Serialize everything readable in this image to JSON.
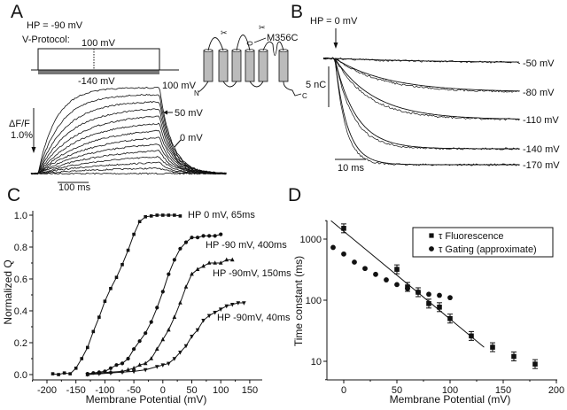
{
  "panels": {
    "A": {
      "label": "A",
      "hp": "HP = -90 mV",
      "protocol_label": "V-Protocol:",
      "step_high": "100 mV",
      "step_low": "-140 mV",
      "trace_labels": [
        "100 mV",
        "50 mV",
        "0 mV"
      ],
      "scale_y": [
        "ΔF/F",
        "1.0%"
      ],
      "scale_x": "100 ms",
      "topology": {
        "mutation": "M356C",
        "n_term": "N",
        "c_term": "C"
      }
    },
    "B": {
      "label": "B",
      "hp": "HP = 0 mV",
      "scale_y": "5 nC",
      "scale_x": "10 ms",
      "trace_labels": [
        "-50 mV",
        "-80 mV",
        "-110 mV",
        "-140 mV",
        "-170 mV"
      ]
    },
    "C": {
      "label": "C"
    },
    "D": {
      "label": "D"
    }
  },
  "chart_data": [
    {
      "panel": "C",
      "type": "scatter",
      "xlabel": "Membrane Potential (mV)",
      "ylabel": "Normalized Q",
      "xlim": [
        -225,
        160
      ],
      "ylim": [
        0,
        1.0
      ],
      "xticks": [
        -200,
        -150,
        -100,
        -50,
        0,
        50,
        100,
        150
      ],
      "yticks": [
        0.0,
        0.2,
        0.4,
        0.6,
        0.8,
        1.0
      ],
      "ytick_labels": [
        "0.0",
        "0.2",
        "0.4",
        "0.6",
        "0.8",
        "1.0"
      ],
      "grid": false,
      "series": [
        {
          "name": "HP 0 mV, 65ms",
          "marker": "square",
          "x": [
            -190,
            -180,
            -170,
            -160,
            -150,
            -140,
            -130,
            -120,
            -110,
            -100,
            -90,
            -80,
            -70,
            -60,
            -50,
            -40,
            -30,
            -20,
            -10,
            0,
            10,
            20,
            30
          ],
          "y": [
            0.005,
            0.0,
            0.01,
            0.005,
            0.04,
            0.1,
            0.17,
            0.27,
            0.36,
            0.46,
            0.54,
            0.61,
            0.69,
            0.78,
            0.88,
            0.96,
            0.99,
            0.995,
            1.0,
            1.0,
            1.0,
            1.0,
            0.995
          ]
        },
        {
          "name": "HP -90 mV, 400ms",
          "marker": "circle",
          "x": [
            -130,
            -120,
            -110,
            -100,
            -90,
            -80,
            -70,
            -60,
            -50,
            -40,
            -30,
            -20,
            -10,
            0,
            10,
            20,
            30,
            40,
            50,
            60,
            70,
            80,
            90,
            100
          ],
          "y": [
            0.005,
            0.01,
            0.015,
            0.02,
            0.04,
            0.06,
            0.07,
            0.1,
            0.16,
            0.21,
            0.26,
            0.33,
            0.42,
            0.52,
            0.63,
            0.72,
            0.79,
            0.83,
            0.86,
            0.86,
            0.87,
            0.87,
            0.87,
            0.88
          ]
        },
        {
          "name": "HP -90mV, 150ms",
          "marker": "triangle-up",
          "x": [
            -130,
            -110,
            -90,
            -70,
            -60,
            -50,
            -40,
            -30,
            -20,
            -10,
            0,
            10,
            20,
            30,
            40,
            50,
            60,
            70,
            80,
            90,
            100,
            110,
            120
          ],
          "y": [
            0.0,
            0.01,
            0.015,
            0.02,
            0.03,
            0.04,
            0.06,
            0.07,
            0.1,
            0.16,
            0.22,
            0.28,
            0.36,
            0.45,
            0.55,
            0.63,
            0.66,
            0.68,
            0.7,
            0.7,
            0.7,
            0.72,
            0.72
          ]
        },
        {
          "name": "HP -90mV, 40ms",
          "marker": "triangle-down",
          "x": [
            -130,
            -110,
            -90,
            -70,
            -50,
            -30,
            -10,
            0,
            10,
            20,
            30,
            40,
            50,
            60,
            70,
            80,
            90,
            100,
            110,
            120,
            130,
            140
          ],
          "y": [
            0.0,
            0.005,
            0.01,
            0.015,
            0.02,
            0.03,
            0.05,
            0.06,
            0.07,
            0.1,
            0.14,
            0.18,
            0.24,
            0.28,
            0.34,
            0.37,
            0.39,
            0.41,
            0.43,
            0.44,
            0.45,
            0.45
          ]
        }
      ]
    },
    {
      "panel": "D",
      "type": "scatter",
      "xlabel": "Membrane Potential (mV)",
      "ylabel": "Time constant (ms)",
      "xlim": [
        -15,
        200
      ],
      "ylim": [
        5,
        2000
      ],
      "yscale": "log",
      "xticks": [
        0,
        50,
        100,
        150,
        200
      ],
      "yticks": [
        10,
        100,
        1000
      ],
      "grid": false,
      "legend": "top-right",
      "series": [
        {
          "name": "τ  Fluorescence",
          "marker": "square",
          "error_bars": true,
          "x": [
            0,
            50,
            60,
            70,
            80,
            90,
            100,
            120,
            140,
            160,
            180
          ],
          "y": [
            1500,
            320,
            165,
            135,
            88,
            77,
            50,
            26,
            17,
            12,
            9
          ]
        },
        {
          "name": "τ  Gating (approximate)",
          "marker": "circle",
          "x": [
            -10,
            0,
            10,
            20,
            30,
            40,
            50,
            60,
            70,
            80,
            90,
            100
          ],
          "y": [
            730,
            570,
            420,
            330,
            265,
            215,
            180,
            155,
            135,
            125,
            120,
            110
          ]
        }
      ],
      "fit_line": {
        "x": [
          -12,
          132
        ],
        "y": [
          2000,
          17
        ]
      }
    }
  ]
}
